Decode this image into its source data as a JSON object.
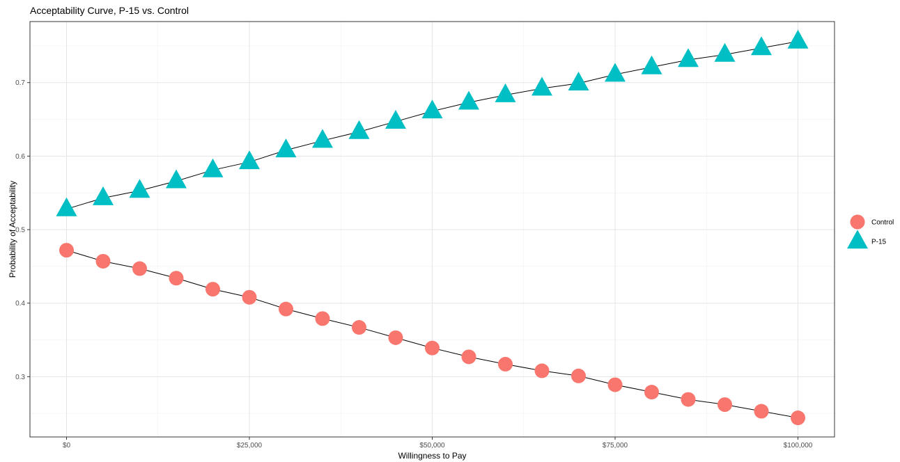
{
  "chart_data": {
    "type": "line",
    "title": "Acceptability Curve, P-15 vs. Control",
    "xlabel": "Willingness to Pay",
    "ylabel": "Probability of Acceptability",
    "x": [
      0,
      5000,
      10000,
      15000,
      20000,
      25000,
      30000,
      35000,
      40000,
      45000,
      50000,
      55000,
      60000,
      65000,
      70000,
      75000,
      80000,
      85000,
      90000,
      95000,
      100000
    ],
    "series": [
      {
        "name": "Control",
        "marker": "circle",
        "color": "#F8766D",
        "values": [
          0.472,
          0.457,
          0.447,
          0.434,
          0.419,
          0.408,
          0.392,
          0.379,
          0.367,
          0.353,
          0.339,
          0.327,
          0.317,
          0.308,
          0.301,
          0.289,
          0.279,
          0.269,
          0.262,
          0.253,
          0.244
        ]
      },
      {
        "name": "P-15",
        "marker": "triangle",
        "color": "#00BFC4",
        "values": [
          0.528,
          0.543,
          0.553,
          0.566,
          0.581,
          0.592,
          0.608,
          0.621,
          0.633,
          0.647,
          0.661,
          0.673,
          0.683,
          0.692,
          0.699,
          0.711,
          0.721,
          0.731,
          0.738,
          0.747,
          0.756
        ]
      }
    ],
    "xticks": [
      0,
      25000,
      50000,
      75000,
      100000
    ],
    "xtick_labels": [
      "$0",
      "$25,000",
      "$50,000",
      "$75,000",
      "$100,000"
    ],
    "yticks": [
      0.3,
      0.4,
      0.5,
      0.6,
      0.7
    ],
    "ytick_labels": [
      "0.3",
      "0.4",
      "0.5",
      "0.6",
      "0.7"
    ],
    "xlim": [
      -5000,
      105000
    ],
    "ylim": [
      0.218,
      0.783
    ],
    "grid": true,
    "legend": "right",
    "line_color": "#000000"
  }
}
